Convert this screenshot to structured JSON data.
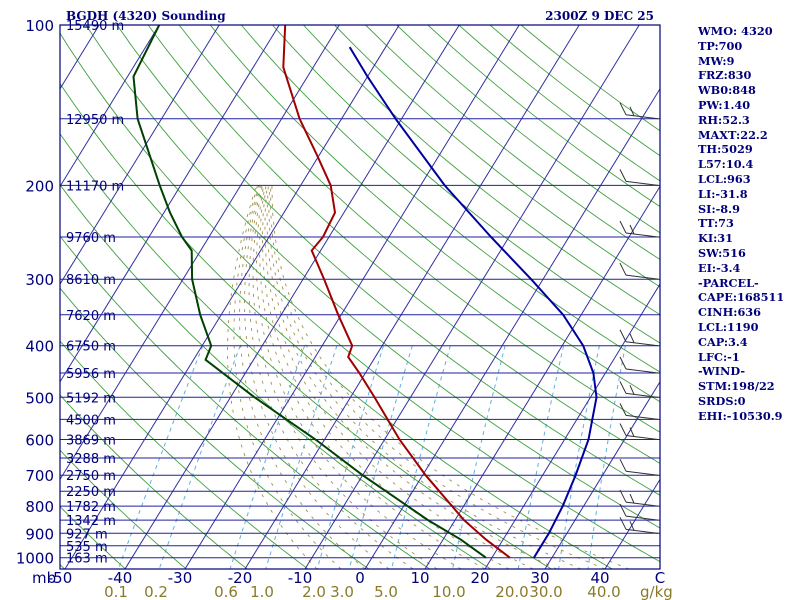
{
  "chart_data": {
    "type": "line",
    "title": "BGDH (4320) Sounding",
    "time_label": "2300Z  9 DEC 25",
    "pressure_unit_label": "mb",
    "mixing_unit_label": "g/kg",
    "y_ticks": [
      {
        "p": 100,
        "label": "100"
      },
      {
        "p": 200,
        "label": "200"
      },
      {
        "p": 300,
        "label": "300"
      },
      {
        "p": 400,
        "label": "400"
      },
      {
        "p": 500,
        "label": "500"
      },
      {
        "p": 600,
        "label": "600"
      },
      {
        "p": 700,
        "label": "700"
      },
      {
        "p": 800,
        "label": "800"
      },
      {
        "p": 900,
        "label": "900"
      },
      {
        "p": 1000,
        "label": "1000"
      }
    ],
    "x_ticks": [
      {
        "t": -50,
        "label": "-50"
      },
      {
        "t": -40,
        "label": "-40"
      },
      {
        "t": -30,
        "label": "-30"
      },
      {
        "t": -20,
        "label": "-20"
      },
      {
        "t": -10,
        "label": "-10"
      },
      {
        "t": 0,
        "label": "0"
      },
      {
        "t": 10,
        "label": "10"
      },
      {
        "t": 20,
        "label": "20"
      },
      {
        "t": 30,
        "label": "30"
      },
      {
        "t": 40,
        "label": "40"
      },
      {
        "t": 50,
        "label": "C"
      }
    ],
    "mixing_ratio_labels": [
      "0.1",
      "0.2",
      "0.6",
      "1.0",
      "2.0",
      "3.0",
      "5.0",
      "10.0",
      "20.0",
      "30.0",
      "40.0"
    ],
    "height_levels": [
      {
        "p": 100,
        "label": "15490 m"
      },
      {
        "p": 150,
        "label": "12950 m"
      },
      {
        "p": 200,
        "label": "11170 m"
      },
      {
        "p": 250,
        "label": "9760 m"
      },
      {
        "p": 300,
        "label": "8610 m"
      },
      {
        "p": 350,
        "label": "7620 m"
      },
      {
        "p": 400,
        "label": "6750 m"
      },
      {
        "p": 450,
        "label": "5956 m"
      },
      {
        "p": 500,
        "label": "5192 m"
      },
      {
        "p": 550,
        "label": "4500 m"
      },
      {
        "p": 600,
        "label": "3869 m"
      },
      {
        "p": 650,
        "label": "3288 m"
      },
      {
        "p": 700,
        "label": "2750 m"
      },
      {
        "p": 750,
        "label": "2250 m"
      },
      {
        "p": 800,
        "label": "1782 m"
      },
      {
        "p": 850,
        "label": "1342 m"
      },
      {
        "p": 900,
        "label": "927 m"
      },
      {
        "p": 950,
        "label": "535 m"
      },
      {
        "p": 1000,
        "label": "163 m"
      }
    ],
    "series": [
      {
        "key": "temperature",
        "color": "#a00000",
        "points": [
          {
            "p": 1000,
            "t": 23.0
          },
          {
            "p": 925,
            "t": 17.2
          },
          {
            "p": 850,
            "t": 11.5
          },
          {
            "p": 700,
            "t": 0.5
          },
          {
            "p": 600,
            "t": -7.5
          },
          {
            "p": 500,
            "t": -16.0
          },
          {
            "p": 450,
            "t": -21.0
          },
          {
            "p": 420,
            "t": -24.5
          },
          {
            "p": 400,
            "t": -25.0
          },
          {
            "p": 350,
            "t": -30.5
          },
          {
            "p": 300,
            "t": -36.5
          },
          {
            "p": 265,
            "t": -41.5
          },
          {
            "p": 250,
            "t": -41.0
          },
          {
            "p": 225,
            "t": -41.5
          },
          {
            "p": 200,
            "t": -45.0
          },
          {
            "p": 175,
            "t": -50.5
          },
          {
            "p": 150,
            "t": -57.0
          },
          {
            "p": 120,
            "t": -65.0
          },
          {
            "p": 100,
            "t": -69.0
          }
        ]
      },
      {
        "key": "dewpoint",
        "color": "#004000",
        "points": [
          {
            "p": 1000,
            "t": 19.0
          },
          {
            "p": 925,
            "t": 13.0
          },
          {
            "p": 850,
            "t": 5.5
          },
          {
            "p": 700,
            "t": -10.0
          },
          {
            "p": 600,
            "t": -21.5
          },
          {
            "p": 500,
            "t": -36.0
          },
          {
            "p": 425,
            "t": -48.0
          },
          {
            "p": 400,
            "t": -48.5
          },
          {
            "p": 350,
            "t": -53.5
          },
          {
            "p": 300,
            "t": -58.5
          },
          {
            "p": 265,
            "t": -61.5
          },
          {
            "p": 250,
            "t": -64.5
          },
          {
            "p": 225,
            "t": -69.0
          },
          {
            "p": 200,
            "t": -73.5
          },
          {
            "p": 150,
            "t": -84.0
          },
          {
            "p": 125,
            "t": -89.0
          },
          {
            "p": 100,
            "t": -90.0
          }
        ]
      },
      {
        "key": "parcel",
        "color": "#0000a0",
        "points": [
          {
            "p": 1000,
            "t": 27.0
          },
          {
            "p": 900,
            "t": 27.0
          },
          {
            "p": 800,
            "t": 26.5
          },
          {
            "p": 700,
            "t": 25.5
          },
          {
            "p": 600,
            "t": 24.0
          },
          {
            "p": 500,
            "t": 21.0
          },
          {
            "p": 450,
            "t": 18.0
          },
          {
            "p": 400,
            "t": 13.5
          },
          {
            "p": 350,
            "t": 7.0
          },
          {
            "p": 300,
            "t": -2.0
          },
          {
            "p": 250,
            "t": -13.0
          },
          {
            "p": 200,
            "t": -26.0
          },
          {
            "p": 150,
            "t": -41.0
          },
          {
            "p": 125,
            "t": -50.0
          },
          {
            "p": 110,
            "t": -56.0
          }
        ]
      }
    ],
    "stats": [
      "WMO: 4320",
      "TP:700",
      "MW:9",
      "FRZ:830",
      "WB0:848",
      "PW:1.40",
      "RH:52.3",
      "MAXT:22.2",
      "TH:5029",
      "L57:10.4",
      "LCL:963",
      "LI:-31.8",
      "SI:-8.9",
      "TT:73",
      "KI:31",
      "SW:516",
      "EI:-3.4",
      "-PARCEL-",
      "CAPE:168511",
      "CINH:636",
      "LCL:1190",
      "CAP:3.4",
      "LFC:-1",
      "-WIND-",
      "STM:198/22",
      "SRDS:0",
      "EHI:-10530.9"
    ],
    "colors": {
      "frame": "#00007a",
      "isobar": "#2020a0",
      "isotherm": "#3030a0",
      "dry_adiabat": "#40a040",
      "moist_adiabat": "#a09050",
      "mixing_ratio": "#60b0e0",
      "barb": "#303030"
    }
  }
}
